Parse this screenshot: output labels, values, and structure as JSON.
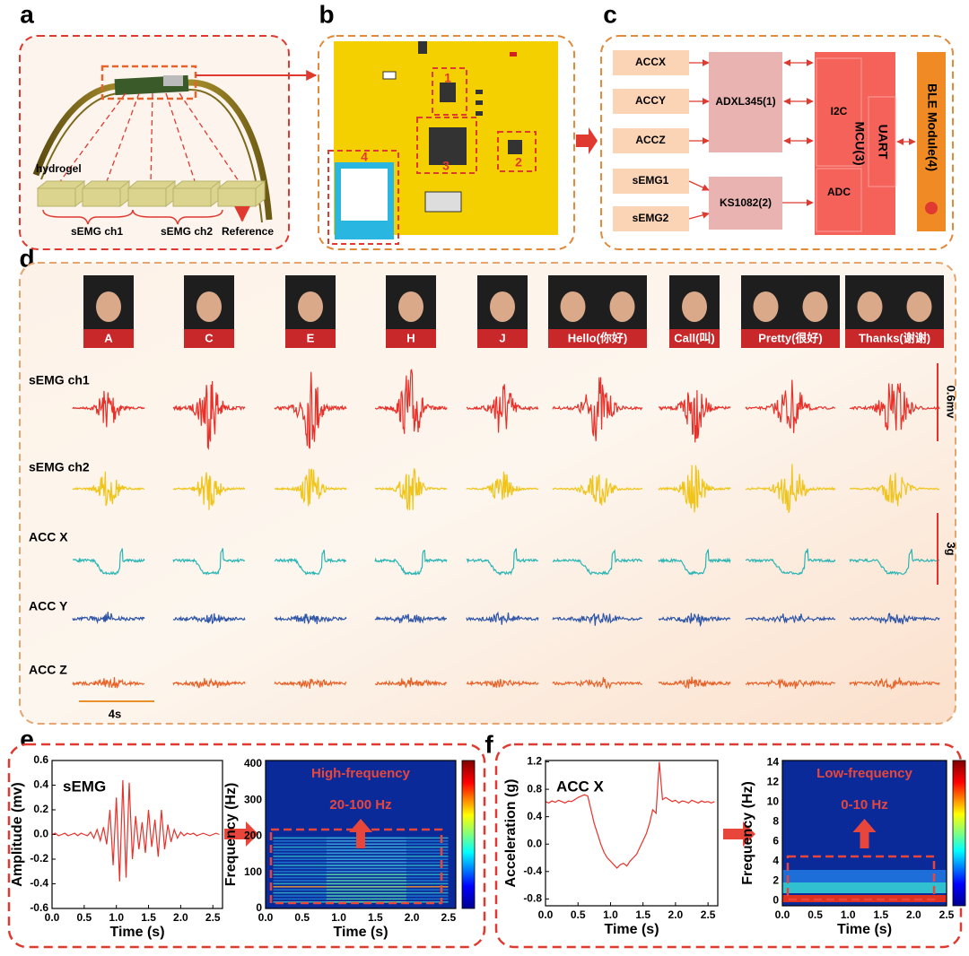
{
  "panel_labels": [
    "a",
    "b",
    "c",
    "d",
    "e",
    "f"
  ],
  "panel_a": {
    "labels": [
      "hydrogel",
      "sEMG ch1",
      "sEMG ch2",
      "Reference"
    ]
  },
  "panel_b": {
    "labels": [
      "1",
      "2",
      "3",
      "4"
    ]
  },
  "panel_c": {
    "inputs": [
      "ACCX",
      "ACCY",
      "ACCZ",
      "sEMG1",
      "sEMG2"
    ],
    "blocks": {
      "accelerometer": "ADXL345(1)",
      "emg_frontend": "KS1082(2)",
      "i2c": "I2C",
      "adc": "ADC",
      "mcu": "MCU(3)",
      "uart": "UART",
      "ble": "BLE Module(4)"
    }
  },
  "panel_d": {
    "gestures": [
      "A",
      "C",
      "E",
      "H",
      "J",
      "Hello(你好)",
      "Call(叫)",
      "Pretty(很好)",
      "Thanks(谢谢)"
    ],
    "rows": [
      "sEMG ch1",
      "sEMG ch2",
      "ACC X",
      "ACC Y",
      "ACC Z"
    ],
    "scale_labels": [
      "0.6mv",
      "3g",
      "4s"
    ]
  },
  "chart_data": [
    {
      "type": "line",
      "annotation": "sEMG",
      "xlabel": "Time (s)",
      "ylabel": "Amplitude (mv)",
      "xlim": [
        0,
        2.65
      ],
      "ylim": [
        -0.6,
        0.6
      ],
      "xticks": [
        {
          "value": 0,
          "label": "0.0"
        },
        0.5,
        {
          "value": 1,
          "label": "1.0"
        },
        1.5,
        {
          "value": 2,
          "label": "2.0"
        },
        2.5
      ],
      "yticks": [
        -0.6,
        -0.4,
        -0.2,
        {
          "value": 0,
          "label": "0.0"
        },
        0.2,
        0.4,
        0.6
      ],
      "color": "#e8312a",
      "x": [
        0,
        0.05,
        0.1,
        0.15,
        0.2,
        0.25,
        0.3,
        0.35,
        0.4,
        0.45,
        0.5,
        0.55,
        0.6,
        0.65,
        0.7,
        0.75,
        0.8,
        0.85,
        0.9,
        0.95,
        1,
        1.05,
        1.1,
        1.15,
        1.2,
        1.25,
        1.3,
        1.35,
        1.4,
        1.45,
        1.5,
        1.55,
        1.6,
        1.65,
        1.7,
        1.75,
        1.8,
        1.85,
        1.9,
        1.95,
        2,
        2.05,
        2.1,
        2.15,
        2.2,
        2.25,
        2.3,
        2.35,
        2.4,
        2.45,
        2.5,
        2.55,
        2.6
      ],
      "values": [
        0,
        0.01,
        -0.01,
        0,
        0.01,
        -0.01,
        0,
        0.01,
        -0.01,
        0.01,
        0,
        -0.01,
        0.02,
        -0.03,
        0.04,
        -0.05,
        0.06,
        -0.08,
        0.2,
        -0.25,
        0.3,
        -0.38,
        0.44,
        -0.35,
        0.42,
        -0.2,
        0.15,
        -0.12,
        0.1,
        -0.15,
        0.2,
        -0.1,
        0.12,
        -0.18,
        0.2,
        -0.12,
        0.08,
        -0.06,
        0.04,
        -0.03,
        0.02,
        -0.01,
        0.01,
        0,
        0.01,
        -0.01,
        0,
        0.01,
        0,
        -0.01,
        0,
        0.01,
        0
      ]
    },
    {
      "type": "heatmap",
      "annotations": [
        "High-frequency",
        "20-100 Hz"
      ],
      "xlabel": "Time (s)",
      "ylabel": "Frequency (Hz)",
      "xlim": [
        0,
        2.6
      ],
      "ylim": [
        0,
        410
      ],
      "xticks": [
        {
          "value": 0,
          "label": "0.0"
        },
        0.5,
        {
          "value": 1,
          "label": "1.0"
        },
        1.5,
        {
          "value": 2,
          "label": "2.0"
        },
        2.5
      ],
      "yticks": [
        0,
        100,
        200,
        300,
        400
      ]
    },
    {
      "type": "line",
      "annotation": "ACC X",
      "xlabel": "Time (s)",
      "ylabel": "Acceleration (g)",
      "xlim": [
        0,
        2.65
      ],
      "ylim": [
        -0.9,
        1.22
      ],
      "xticks": [
        {
          "value": 0,
          "label": "0.0"
        },
        0.5,
        {
          "value": 1,
          "label": "1.0"
        },
        1.5,
        {
          "value": 2,
          "label": "2.0"
        },
        2.5
      ],
      "yticks": [
        -0.8,
        -0.4,
        {
          "value": 0,
          "label": "0.0"
        },
        0.4,
        0.8,
        1.2
      ],
      "color": "#e8312a",
      "x": [
        0,
        0.05,
        0.1,
        0.15,
        0.2,
        0.25,
        0.3,
        0.35,
        0.4,
        0.45,
        0.5,
        0.55,
        0.6,
        0.65,
        0.7,
        0.75,
        0.8,
        0.85,
        0.9,
        0.95,
        1,
        1.05,
        1.1,
        1.15,
        1.2,
        1.25,
        1.3,
        1.35,
        1.4,
        1.45,
        1.5,
        1.55,
        1.6,
        1.65,
        1.7,
        1.75,
        1.8,
        1.85,
        1.9,
        1.95,
        2,
        2.05,
        2.1,
        2.15,
        2.2,
        2.25,
        2.3,
        2.35,
        2.4,
        2.45,
        2.5,
        2.55,
        2.6
      ],
      "values": [
        0.62,
        0.6,
        0.63,
        0.61,
        0.64,
        0.62,
        0.6,
        0.63,
        0.62,
        0.65,
        0.68,
        0.7,
        0.72,
        0.7,
        0.5,
        0.3,
        0.15,
        0,
        -0.12,
        -0.2,
        -0.25,
        -0.3,
        -0.35,
        -0.3,
        -0.28,
        -0.32,
        -0.25,
        -0.2,
        -0.15,
        -0.05,
        0.05,
        0.15,
        0.3,
        0.5,
        0.45,
        1.2,
        0.65,
        0.68,
        0.65,
        0.62,
        0.64,
        0.6,
        0.63,
        0.62,
        0.6,
        0.64,
        0.62,
        0.6,
        0.63,
        0.61,
        0.62,
        0.6,
        0.62
      ]
    },
    {
      "type": "heatmap",
      "annotations": [
        "Low-frequency",
        "0-10  Hz"
      ],
      "xlabel": "Time (s)",
      "ylabel": "Frequency (Hz)",
      "xlim": [
        0,
        2.5
      ],
      "ylim": [
        -0.5,
        14.2
      ],
      "xticks": [
        {
          "value": 0,
          "label": "0.0"
        },
        0.5,
        {
          "value": 1,
          "label": "1.0"
        },
        1.5,
        {
          "value": 2,
          "label": "2.0"
        },
        2.5
      ],
      "yticks": [
        0,
        2,
        4,
        6,
        8,
        10,
        12,
        14
      ]
    }
  ]
}
